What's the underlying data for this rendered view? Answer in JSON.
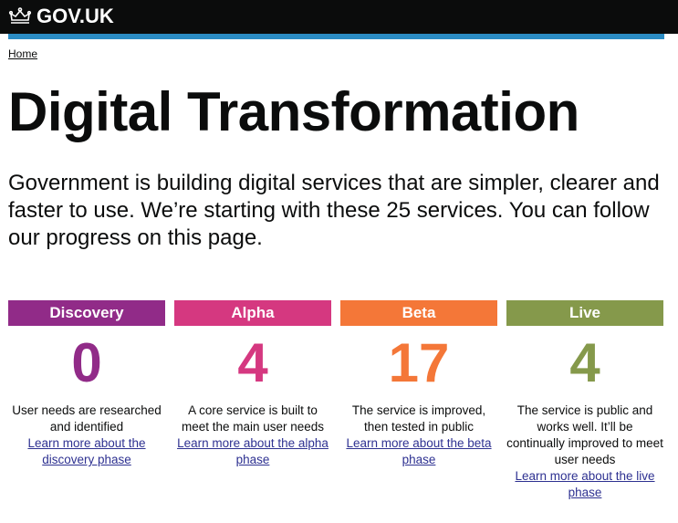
{
  "header": {
    "logo_text": "GOV.UK",
    "logo_icon": "crown-icon"
  },
  "breadcrumb": {
    "home": "Home"
  },
  "title": "Digital Transformation",
  "lede": "Government is building digital services that are simpler, clearer and faster to use. We’re starting with these 25 services. You can follow our progress on this page.",
  "phases": [
    {
      "label": "Discovery",
      "count": "0",
      "color": "#912b88",
      "description": "User needs are researched and identified",
      "link": "Learn more about the discovery phase"
    },
    {
      "label": "Alpha",
      "count": "4",
      "color": "#d53880",
      "description": "A core service is built to meet the main user needs",
      "link": "Learn more about the alpha phase"
    },
    {
      "label": "Beta",
      "count": "17",
      "color": "#f47738",
      "description": "The service is improved, then tested in public",
      "link": "Learn more about the beta phase"
    },
    {
      "label": "Live",
      "count": "4",
      "color": "#85994b",
      "description": "The service is public and works well. It’ll be continually improved to meet user needs",
      "link": "Learn more about the live phase"
    }
  ]
}
